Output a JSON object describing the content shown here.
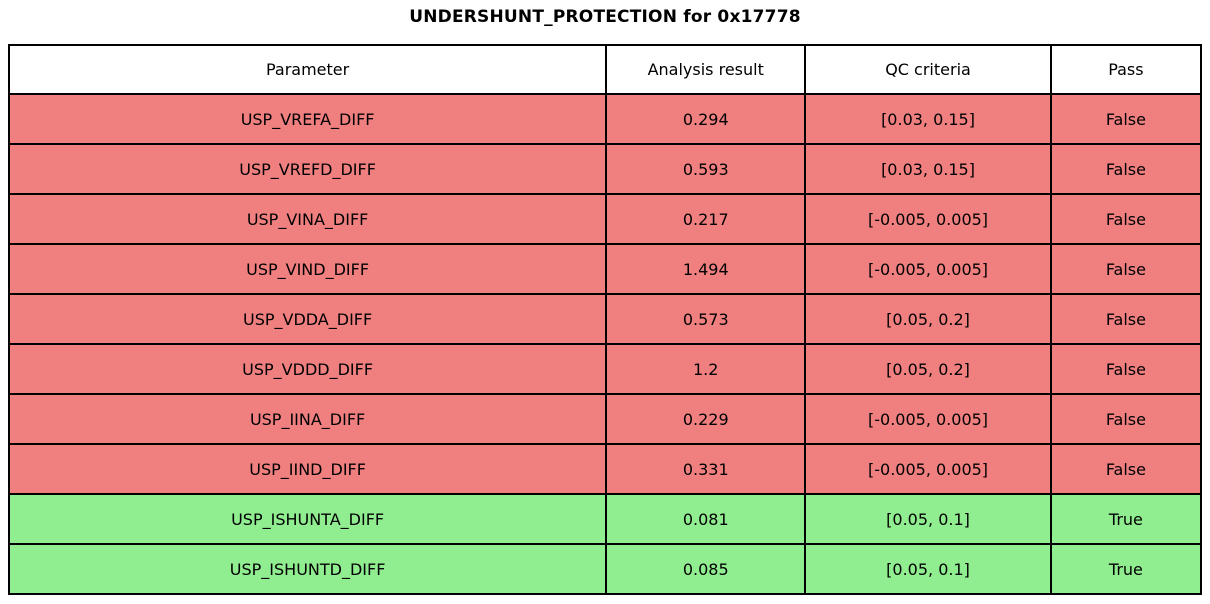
{
  "title": "UNDERSHUNT_PROTECTION for 0x17778",
  "colors": {
    "fail_row": "#f08080",
    "pass_row": "#90ee90",
    "header_bg": "#ffffff",
    "border": "#000000",
    "text": "#000000"
  },
  "chart_data": {
    "type": "table",
    "title": "UNDERSHUNT_PROTECTION for 0x17778",
    "columns": [
      "Parameter",
      "Analysis result",
      "QC criteria",
      "Pass"
    ],
    "rows": [
      {
        "parameter": "USP_VREFA_DIFF",
        "analysis_result": "0.294",
        "qc_criteria": "[0.03, 0.15]",
        "pass": "False",
        "status": "fail"
      },
      {
        "parameter": "USP_VREFD_DIFF",
        "analysis_result": "0.593",
        "qc_criteria": "[0.03, 0.15]",
        "pass": "False",
        "status": "fail"
      },
      {
        "parameter": "USP_VINA_DIFF",
        "analysis_result": "0.217",
        "qc_criteria": "[-0.005, 0.005]",
        "pass": "False",
        "status": "fail"
      },
      {
        "parameter": "USP_VIND_DIFF",
        "analysis_result": "1.494",
        "qc_criteria": "[-0.005, 0.005]",
        "pass": "False",
        "status": "fail"
      },
      {
        "parameter": "USP_VDDA_DIFF",
        "analysis_result": "0.573",
        "qc_criteria": "[0.05, 0.2]",
        "pass": "False",
        "status": "fail"
      },
      {
        "parameter": "USP_VDDD_DIFF",
        "analysis_result": "1.2",
        "qc_criteria": "[0.05, 0.2]",
        "pass": "False",
        "status": "fail"
      },
      {
        "parameter": "USP_IINA_DIFF",
        "analysis_result": "0.229",
        "qc_criteria": "[-0.005, 0.005]",
        "pass": "False",
        "status": "fail"
      },
      {
        "parameter": "USP_IIND_DIFF",
        "analysis_result": "0.331",
        "qc_criteria": "[-0.005, 0.005]",
        "pass": "False",
        "status": "fail"
      },
      {
        "parameter": "USP_ISHUNTA_DIFF",
        "analysis_result": "0.081",
        "qc_criteria": "[0.05, 0.1]",
        "pass": "True",
        "status": "pass"
      },
      {
        "parameter": "USP_ISHUNTD_DIFF",
        "analysis_result": "0.085",
        "qc_criteria": "[0.05, 0.1]",
        "pass": "True",
        "status": "pass"
      }
    ]
  }
}
